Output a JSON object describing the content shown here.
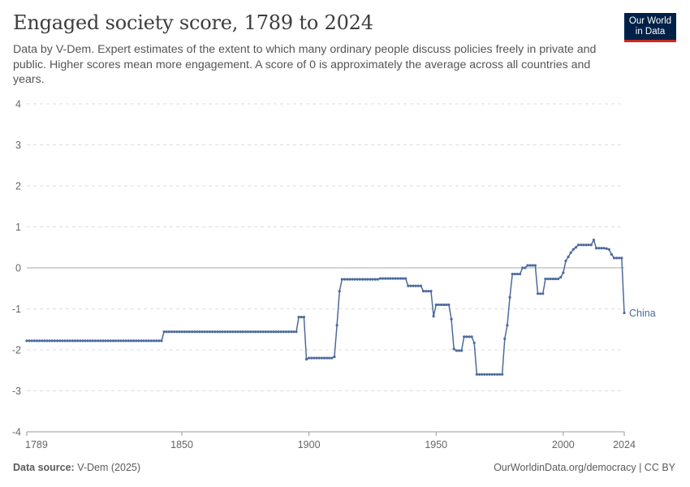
{
  "header": {
    "title": "Engaged society score, 1789 to 2024",
    "subtitle": "Data by V-Dem. Expert estimates of the extent to which many ordinary people discuss policies freely in private and public. Higher scores mean more engagement. A score of 0 is approximately the average across all countries and years."
  },
  "logo": {
    "line1": "Our World",
    "line2": "in Data",
    "bg_color": "#002147",
    "accent_color": "#ce261e"
  },
  "footer": {
    "source_label": "Data source:",
    "source_value": "V-Dem (2025)",
    "link": "OurWorldinData.org/democracy | CC BY"
  },
  "chart_data": {
    "type": "line",
    "title": "Engaged society score, 1789 to 2024",
    "xlabel": "",
    "ylabel": "",
    "xlim": [
      1789,
      2024
    ],
    "ylim": [
      -4,
      4
    ],
    "x_ticks": [
      1789,
      1850,
      1900,
      1950,
      2000,
      2024
    ],
    "y_ticks": [
      4,
      3,
      2,
      1,
      0,
      -1,
      -2,
      -3,
      -4
    ],
    "grid": true,
    "line_color": "#4c6a9c",
    "series": [
      {
        "name": "China",
        "segments": [
          {
            "from": 1789,
            "to": 1842,
            "value": -1.78
          },
          {
            "from": 1843,
            "to": 1895,
            "value": -1.56
          },
          {
            "from": 1896,
            "to": 1898,
            "value": -1.2
          },
          {
            "from": 1899,
            "to": 1899,
            "value": -2.23
          },
          {
            "from": 1900,
            "to": 1909,
            "value": -2.2
          },
          {
            "from": 1910,
            "to": 1910,
            "value": -2.17
          },
          {
            "from": 1911,
            "to": 1911,
            "value": -1.4
          },
          {
            "from": 1912,
            "to": 1912,
            "value": -0.57
          },
          {
            "from": 1913,
            "to": 1927,
            "value": -0.28
          },
          {
            "from": 1928,
            "to": 1938,
            "value": -0.26
          },
          {
            "from": 1939,
            "to": 1944,
            "value": -0.44
          },
          {
            "from": 1945,
            "to": 1948,
            "value": -0.57
          },
          {
            "from": 1949,
            "to": 1949,
            "value": -1.18
          },
          {
            "from": 1950,
            "to": 1955,
            "value": -0.9
          },
          {
            "from": 1956,
            "to": 1956,
            "value": -1.25
          },
          {
            "from": 1957,
            "to": 1957,
            "value": -1.98
          },
          {
            "from": 1958,
            "to": 1960,
            "value": -2.02
          },
          {
            "from": 1961,
            "to": 1964,
            "value": -1.68
          },
          {
            "from": 1965,
            "to": 1965,
            "value": -1.83
          },
          {
            "from": 1966,
            "to": 1976,
            "value": -2.6
          },
          {
            "from": 1977,
            "to": 1977,
            "value": -1.73
          },
          {
            "from": 1978,
            "to": 1978,
            "value": -1.4
          },
          {
            "from": 1979,
            "to": 1979,
            "value": -0.72
          },
          {
            "from": 1980,
            "to": 1983,
            "value": -0.15
          },
          {
            "from": 1984,
            "to": 1985,
            "value": 0.0
          },
          {
            "from": 1986,
            "to": 1989,
            "value": 0.06
          },
          {
            "from": 1990,
            "to": 1992,
            "value": -0.63
          },
          {
            "from": 1993,
            "to": 1998,
            "value": -0.27
          },
          {
            "from": 1999,
            "to": 1999,
            "value": -0.23
          },
          {
            "from": 2000,
            "to": 2000,
            "value": -0.12
          },
          {
            "from": 2001,
            "to": 2001,
            "value": 0.17
          },
          {
            "from": 2002,
            "to": 2002,
            "value": 0.27
          },
          {
            "from": 2003,
            "to": 2003,
            "value": 0.37
          },
          {
            "from": 2004,
            "to": 2004,
            "value": 0.45
          },
          {
            "from": 2005,
            "to": 2005,
            "value": 0.5
          },
          {
            "from": 2006,
            "to": 2011,
            "value": 0.56
          },
          {
            "from": 2012,
            "to": 2012,
            "value": 0.68
          },
          {
            "from": 2013,
            "to": 2016,
            "value": 0.48
          },
          {
            "from": 2017,
            "to": 2017,
            "value": 0.47
          },
          {
            "from": 2018,
            "to": 2018,
            "value": 0.45
          },
          {
            "from": 2019,
            "to": 2019,
            "value": 0.33
          },
          {
            "from": 2020,
            "to": 2023,
            "value": 0.24
          },
          {
            "from": 2024,
            "to": 2024,
            "value": -1.1
          }
        ]
      }
    ]
  }
}
